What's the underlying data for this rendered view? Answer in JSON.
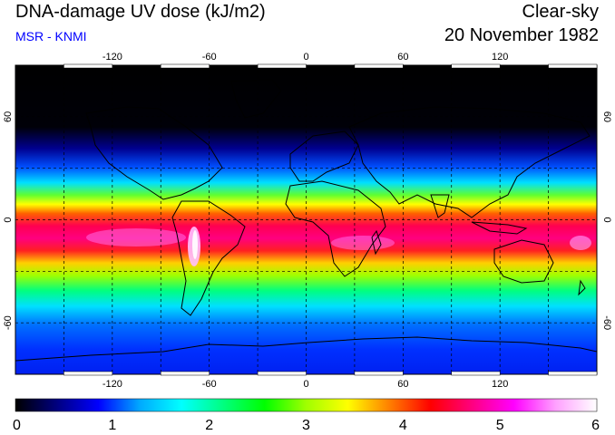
{
  "header": {
    "title": "DNA-damage UV dose (kJ/m2)",
    "subtitle": "MSR - KNMI",
    "mode": "Clear-sky",
    "date": "20 November 1982"
  },
  "map": {
    "lon_ticks": [
      "-120",
      "-60",
      "0",
      "60",
      "120"
    ],
    "lon_values": [
      -120,
      -60,
      0,
      60,
      120
    ],
    "lat_ticks_left": [
      "60",
      "0",
      "-60"
    ],
    "lat_ticks_right": [
      "60",
      "0",
      "-60"
    ],
    "lat_values": [
      60,
      0,
      -60
    ],
    "lon_range": [
      -180,
      180
    ],
    "lat_range": [
      -90,
      90
    ],
    "gridlines": true
  },
  "colorbar": {
    "labels": [
      "0",
      "1",
      "2",
      "3",
      "4",
      "5",
      "6"
    ],
    "range": [
      0,
      6
    ],
    "colors": [
      "#000000",
      "#000080",
      "#0000ff",
      "#00aaff",
      "#00ffff",
      "#00ff80",
      "#00ff00",
      "#a0ff00",
      "#ffff00",
      "#ff8000",
      "#ff0000",
      "#ff0080",
      "#ff00ff",
      "#ffa0ff",
      "#ffffff"
    ]
  }
}
